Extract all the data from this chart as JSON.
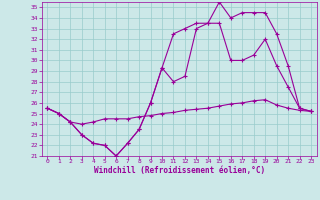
{
  "xlabel": "Windchill (Refroidissement éolien,°C)",
  "bg_color": "#cce8e8",
  "line_color": "#990099",
  "grid_color": "#99cccc",
  "xlim": [
    -0.5,
    23.5
  ],
  "ylim": [
    21,
    35.5
  ],
  "xticks": [
    0,
    1,
    2,
    3,
    4,
    5,
    6,
    7,
    8,
    9,
    10,
    11,
    12,
    13,
    14,
    15,
    16,
    17,
    18,
    19,
    20,
    21,
    22,
    23
  ],
  "yticks": [
    21,
    22,
    23,
    24,
    25,
    26,
    27,
    28,
    29,
    30,
    31,
    32,
    33,
    34,
    35
  ],
  "line1_x": [
    0,
    1,
    2,
    3,
    4,
    5,
    6,
    7,
    8,
    9,
    10,
    11,
    12,
    13,
    14,
    15,
    16,
    17,
    18,
    19,
    20,
    21,
    22,
    23
  ],
  "line1_y": [
    25.5,
    25.0,
    24.2,
    24.0,
    24.2,
    24.5,
    24.5,
    24.5,
    24.7,
    24.8,
    25.0,
    25.1,
    25.3,
    25.4,
    25.5,
    25.7,
    25.9,
    26.0,
    26.2,
    26.3,
    25.8,
    25.5,
    25.3,
    25.2
  ],
  "line2_x": [
    0,
    1,
    2,
    3,
    4,
    5,
    6,
    7,
    8,
    9,
    10,
    11,
    12,
    13,
    14,
    15,
    16,
    17,
    18,
    19,
    20,
    21,
    22,
    23
  ],
  "line2_y": [
    25.5,
    25.0,
    24.2,
    23.0,
    22.2,
    22.0,
    21.0,
    22.2,
    23.5,
    26.0,
    29.3,
    28.0,
    28.5,
    33.0,
    33.5,
    33.5,
    30.0,
    30.0,
    30.5,
    32.0,
    29.5,
    27.5,
    25.5,
    25.2
  ],
  "line3_x": [
    0,
    1,
    2,
    3,
    4,
    5,
    6,
    7,
    8,
    9,
    10,
    11,
    12,
    13,
    14,
    15,
    16,
    17,
    18,
    19,
    20,
    21,
    22,
    23
  ],
  "line3_y": [
    25.5,
    25.0,
    24.2,
    23.0,
    22.2,
    22.0,
    21.0,
    22.2,
    23.5,
    26.0,
    29.3,
    32.5,
    33.0,
    33.5,
    33.5,
    35.5,
    34.0,
    34.5,
    34.5,
    34.5,
    32.5,
    29.5,
    25.5,
    25.2
  ]
}
